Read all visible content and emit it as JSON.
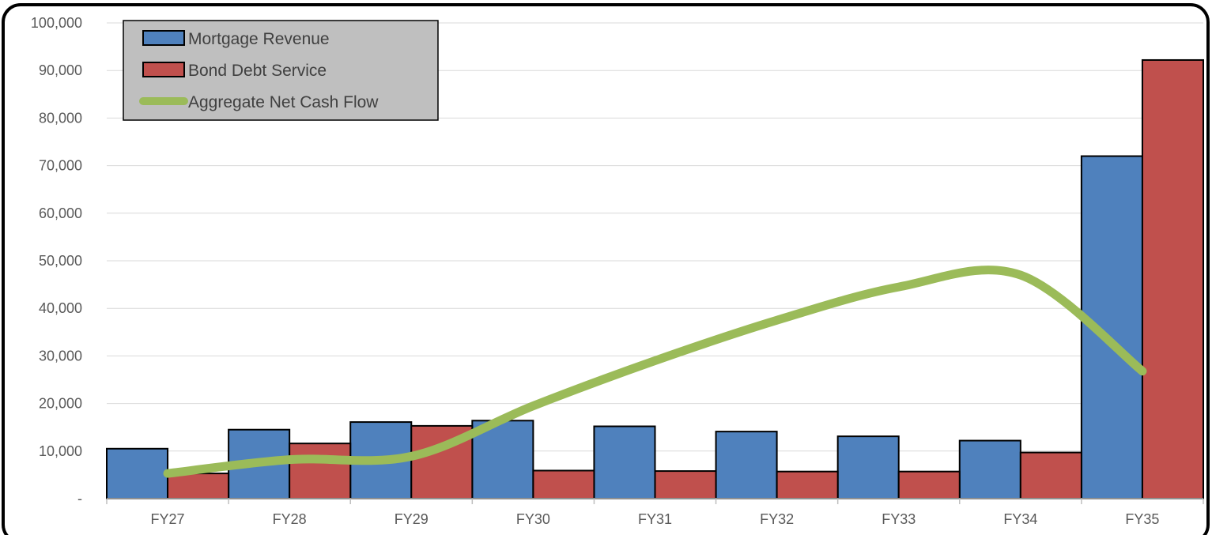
{
  "chart_data": {
    "type": "bar",
    "title": "",
    "xlabel": "",
    "ylabel": "",
    "categories": [
      "FY27",
      "FY28",
      "FY29",
      "FY30",
      "FY31",
      "FY32",
      "FY33",
      "FY34",
      "FY35"
    ],
    "ylim": [
      0,
      100000
    ],
    "yticks": [
      0,
      10000,
      20000,
      30000,
      40000,
      50000,
      60000,
      70000,
      80000,
      90000,
      100000
    ],
    "ytick_labels": [
      "-",
      "10,000",
      "20,000",
      "30,000",
      "40,000",
      "50,000",
      "60,000",
      "70,000",
      "80,000",
      "90,000",
      "100,000"
    ],
    "grid": true,
    "legend_position": "top-left",
    "series": [
      {
        "name": "Mortgage Revenue",
        "type": "bar",
        "color": "#4F81BD",
        "values": [
          10500,
          14500,
          16100,
          16400,
          15200,
          14100,
          13100,
          12200,
          72000
        ]
      },
      {
        "name": "Bond Debt Service",
        "type": "bar",
        "color": "#C0504D",
        "values": [
          5300,
          11600,
          15300,
          5900,
          5800,
          5700,
          5700,
          9700,
          92200
        ]
      },
      {
        "name": "Aggregate Net Cash Flow",
        "type": "line",
        "color": "#9BBB59",
        "values": [
          5300,
          8200,
          8900,
          19500,
          29000,
          37500,
          44500,
          47000,
          26800
        ]
      }
    ]
  }
}
